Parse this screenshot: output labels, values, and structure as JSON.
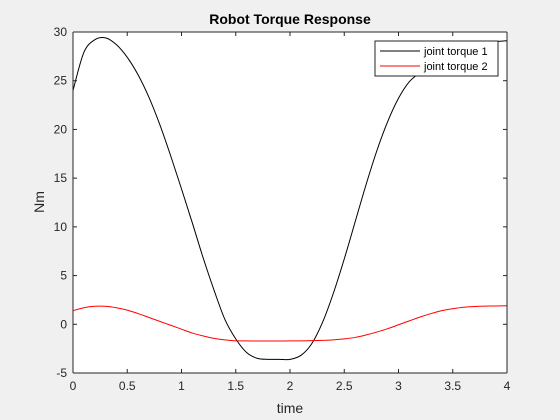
{
  "chart_data": {
    "type": "line",
    "title": "Robot Torque Response",
    "xlabel": "time",
    "ylabel": "Nm",
    "xlim": [
      0,
      4
    ],
    "ylim": [
      -5,
      30
    ],
    "xticks": [
      0,
      0.5,
      1,
      1.5,
      2,
      2.5,
      3,
      3.5,
      4
    ],
    "xtick_labels": [
      "0",
      "0.5",
      "1",
      "1.5",
      "2",
      "2.5",
      "3",
      "3.5",
      "4"
    ],
    "yticks": [
      -5,
      0,
      5,
      10,
      15,
      20,
      25,
      30
    ],
    "ytick_labels": [
      "-5",
      "0",
      "5",
      "10",
      "15",
      "20",
      "25",
      "30"
    ],
    "grid": false,
    "legend_position": "top-right",
    "x": [
      0,
      0.1,
      0.2,
      0.3,
      0.4,
      0.5,
      0.6,
      0.7,
      0.8,
      0.9,
      1.0,
      1.1,
      1.2,
      1.3,
      1.4,
      1.5,
      1.6,
      1.7,
      1.8,
      1.9,
      2.0,
      2.1,
      2.2,
      2.3,
      2.4,
      2.5,
      2.6,
      2.7,
      2.8,
      2.9,
      3.0,
      3.1,
      3.2,
      3.3,
      3.4,
      3.5,
      3.6,
      3.7,
      3.8,
      3.9,
      4.0
    ],
    "series": [
      {
        "name": "joint torque 1",
        "color": "#000000",
        "values": [
          24.0,
          27.9,
          29.2,
          29.4,
          28.7,
          27.4,
          25.6,
          23.3,
          20.5,
          17.3,
          13.9,
          10.4,
          6.8,
          3.5,
          0.5,
          -1.5,
          -2.9,
          -3.5,
          -3.6,
          -3.6,
          -3.6,
          -3.2,
          -2.0,
          0.2,
          3.2,
          6.7,
          10.5,
          14.3,
          17.8,
          20.8,
          23.2,
          24.9,
          25.8,
          26.4,
          27.1,
          27.7,
          28.2,
          28.5,
          28.8,
          29.0,
          29.1
        ]
      },
      {
        "name": "joint torque 2",
        "color": "#ff0000",
        "values": [
          1.4,
          1.7,
          1.85,
          1.85,
          1.7,
          1.45,
          1.1,
          0.7,
          0.3,
          -0.1,
          -0.5,
          -0.9,
          -1.2,
          -1.45,
          -1.6,
          -1.7,
          -1.7,
          -1.72,
          -1.72,
          -1.72,
          -1.7,
          -1.7,
          -1.68,
          -1.65,
          -1.6,
          -1.5,
          -1.35,
          -1.1,
          -0.8,
          -0.45,
          -0.05,
          0.35,
          0.75,
          1.1,
          1.4,
          1.6,
          1.75,
          1.82,
          1.86,
          1.88,
          1.9
        ]
      }
    ]
  }
}
